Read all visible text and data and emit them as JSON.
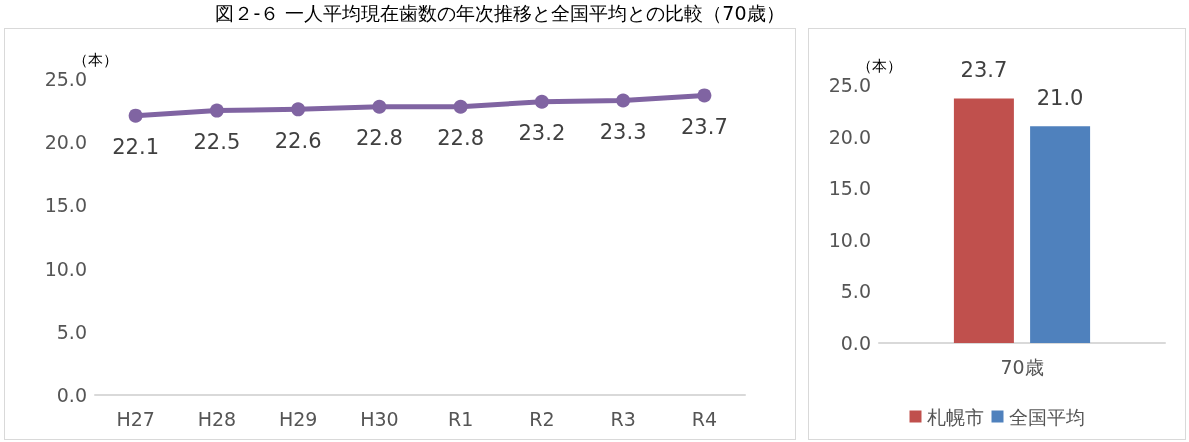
{
  "chart_data": [
    {
      "type": "line",
      "title": "図２-６ 一人平均現在歯数の年次推移と全国平均との比較（70歳）",
      "ylabel": "（本）",
      "categories": [
        "H27",
        "H28",
        "H29",
        "H30",
        "R1",
        "R2",
        "R3",
        "R4"
      ],
      "values": [
        22.1,
        22.5,
        22.6,
        22.8,
        22.8,
        23.2,
        23.3,
        23.7
      ],
      "color": "#8064a2",
      "ylim": [
        0,
        25
      ],
      "yticks": [
        {
          "value": 0,
          "label": "0.0"
        },
        {
          "value": 5,
          "label": "5.0"
        },
        {
          "value": 10,
          "label": "10.0"
        },
        {
          "value": 15,
          "label": "15.0"
        },
        {
          "value": 20,
          "label": "20.0"
        },
        {
          "value": 25,
          "label": "25.0"
        }
      ],
      "data_labels": true,
      "marker": "circle",
      "line_style": "solid",
      "grid": false,
      "legend": false
    },
    {
      "type": "bar",
      "ylabel": "（本）",
      "categories": [
        "70歳"
      ],
      "series": [
        {
          "name": "札幌市",
          "color": "#c0504d",
          "values": [
            23.7
          ],
          "value_labels": [
            "23.7"
          ]
        },
        {
          "name": "全国平均",
          "color": "#4f81bd",
          "values": [
            21.0
          ],
          "value_labels": [
            "21.0"
          ]
        }
      ],
      "ylim": [
        0,
        25
      ],
      "yticks": [
        {
          "value": 0,
          "label": "0.0"
        },
        {
          "value": 5,
          "label": "5.0"
        },
        {
          "value": 10,
          "label": "10.0"
        },
        {
          "value": 15,
          "label": "15.0"
        },
        {
          "value": 20,
          "label": "20.0"
        },
        {
          "value": 25,
          "label": "25.0"
        }
      ],
      "grid": false,
      "legend": "bottom"
    }
  ]
}
